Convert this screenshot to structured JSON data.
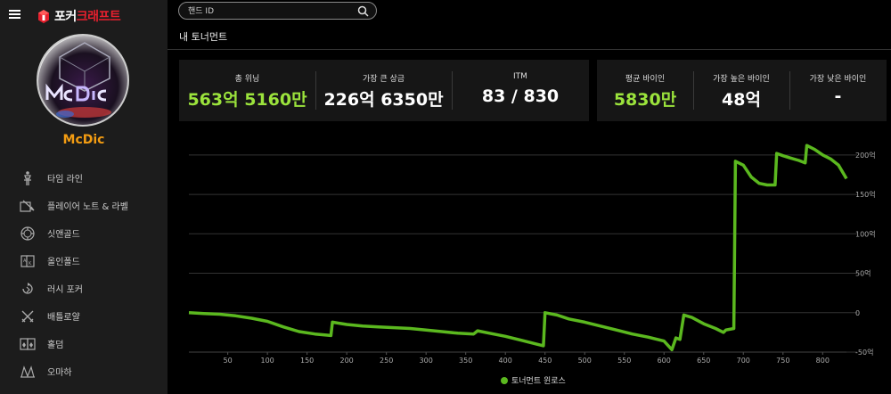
{
  "app": {
    "brand_main": "포커",
    "brand_accent": "크래프트",
    "brand_color": "#e8202e"
  },
  "user": {
    "name": "McDic",
    "name_color": "#f39c12"
  },
  "sidebar": {
    "items": [
      {
        "label": "타임 라인",
        "icon": "timeline-icon"
      },
      {
        "label": "플레이어 노트 & 라벨",
        "icon": "notes-icon"
      },
      {
        "label": "싯앤골드",
        "icon": "sit-and-go-icon"
      },
      {
        "label": "올인폴드",
        "icon": "all-in-fold-icon"
      },
      {
        "label": "러시 포커",
        "icon": "rush-poker-icon"
      },
      {
        "label": "배틀로얄",
        "icon": "battle-royale-icon"
      },
      {
        "label": "홀덤",
        "icon": "holdem-icon"
      },
      {
        "label": "오마하",
        "icon": "omaha-icon"
      }
    ]
  },
  "search": {
    "placeholder": "핸드 ID"
  },
  "section": {
    "title": "내 토너먼트"
  },
  "stats_left": [
    {
      "label": "총 위닝",
      "value": "563억 5160만",
      "highlight": true
    },
    {
      "label": "가장 큰 상금",
      "value": "226억 6350만",
      "highlight": false
    },
    {
      "label": "ITM",
      "value": "83 / 830",
      "highlight": false
    }
  ],
  "stats_right": [
    {
      "label": "평균 바이인",
      "value": "5830만",
      "highlight": true
    },
    {
      "label": "가장 높은 바이인",
      "value": "48억",
      "highlight": false
    },
    {
      "label": "가장 낮은 바이인",
      "value": "-",
      "highlight": false
    }
  ],
  "colors": {
    "accent_green": "#9be33c",
    "line_green": "#5bb81f"
  },
  "chart_data": {
    "type": "line",
    "title": "",
    "xlabel": "",
    "ylabel": "",
    "xlim": [
      1,
      830
    ],
    "ylim": [
      -50,
      210
    ],
    "x_ticks": [
      50,
      100,
      150,
      200,
      250,
      300,
      350,
      400,
      450,
      500,
      550,
      600,
      650,
      700,
      750,
      800
    ],
    "y_ticks": [
      {
        "value": 200,
        "label": "200억"
      },
      {
        "value": 150,
        "label": "150억"
      },
      {
        "value": 100,
        "label": "100억"
      },
      {
        "value": 50,
        "label": "50억"
      },
      {
        "value": 0,
        "label": "0"
      },
      {
        "value": -50,
        "label": "-50억"
      }
    ],
    "legend_position": "bottom-center",
    "series": [
      {
        "name": "토너먼트 윈로스",
        "points": [
          [
            1,
            0
          ],
          [
            20,
            -1
          ],
          [
            40,
            -2
          ],
          [
            60,
            -4
          ],
          [
            80,
            -7
          ],
          [
            100,
            -11
          ],
          [
            120,
            -18
          ],
          [
            140,
            -24
          ],
          [
            160,
            -27
          ],
          [
            180,
            -29
          ],
          [
            182,
            -12
          ],
          [
            200,
            -15
          ],
          [
            220,
            -17
          ],
          [
            240,
            -18
          ],
          [
            260,
            -19
          ],
          [
            280,
            -20
          ],
          [
            300,
            -22
          ],
          [
            320,
            -24
          ],
          [
            340,
            -26
          ],
          [
            360,
            -27
          ],
          [
            365,
            -23
          ],
          [
            380,
            -26
          ],
          [
            400,
            -30
          ],
          [
            420,
            -35
          ],
          [
            440,
            -40
          ],
          [
            448,
            -42
          ],
          [
            450,
            0
          ],
          [
            465,
            -3
          ],
          [
            480,
            -8
          ],
          [
            500,
            -12
          ],
          [
            520,
            -17
          ],
          [
            540,
            -22
          ],
          [
            560,
            -27
          ],
          [
            580,
            -31
          ],
          [
            600,
            -36
          ],
          [
            610,
            -47
          ],
          [
            615,
            -32
          ],
          [
            620,
            -34
          ],
          [
            625,
            -3
          ],
          [
            635,
            -6
          ],
          [
            650,
            -14
          ],
          [
            665,
            -20
          ],
          [
            675,
            -25
          ],
          [
            678,
            -22
          ],
          [
            688,
            -20
          ],
          [
            690,
            192
          ],
          [
            700,
            187
          ],
          [
            710,
            172
          ],
          [
            720,
            164
          ],
          [
            730,
            162
          ],
          [
            740,
            162
          ],
          [
            742,
            202
          ],
          [
            750,
            199
          ],
          [
            760,
            196
          ],
          [
            770,
            193
          ],
          [
            778,
            190
          ],
          [
            780,
            212
          ],
          [
            790,
            207
          ],
          [
            800,
            200
          ],
          [
            810,
            195
          ],
          [
            820,
            187
          ],
          [
            830,
            170
          ]
        ]
      }
    ]
  }
}
